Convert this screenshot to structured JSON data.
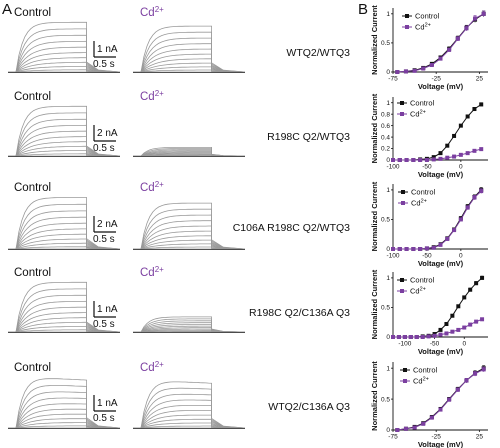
{
  "figure": {
    "panel_a": "A",
    "panel_b": "B"
  },
  "colors": {
    "control": "#111111",
    "cd": "#7b3fa0",
    "trace": "#9a9a9a"
  },
  "labels": {
    "control": "Control",
    "cd_main": "Cd",
    "cd_sup": "2+"
  },
  "rows": [
    {
      "label": "WTQ2/WTQ3",
      "scale_current": "1 nA",
      "scale_time": "0.5 s"
    },
    {
      "label": "R198C Q2/WTQ3",
      "scale_current": "2 nA",
      "scale_time": "0.5 s"
    },
    {
      "label": "C106A R198C Q2/WTQ3",
      "scale_current": "2 nA",
      "scale_time": "0.5 s"
    },
    {
      "label": "R198C Q2/C136A Q3",
      "scale_current": "1 nA",
      "scale_time": "0.5 s"
    },
    {
      "label": "WTQ2/C136A Q3",
      "scale_current": "1 nA",
      "scale_time": "0.5 s"
    }
  ],
  "chart_data": [
    {
      "type": "line",
      "xlabel": "Voltage (mV)",
      "ylabel": "Normalized Current",
      "xlim": [
        -75,
        35
      ],
      "ylim": [
        0,
        1.1
      ],
      "xticks": [
        -75,
        -25,
        25
      ],
      "yticks": [
        0.0,
        0.5,
        1.0
      ],
      "x": [
        -70,
        -60,
        -50,
        -40,
        -30,
        -20,
        -10,
        0,
        10,
        20,
        30
      ],
      "series": [
        {
          "name": "Control",
          "values": [
            0.0,
            0.01,
            0.03,
            0.07,
            0.14,
            0.25,
            0.4,
            0.58,
            0.76,
            0.9,
            1.0
          ]
        },
        {
          "name": "Cd2+",
          "values": [
            0.0,
            0.01,
            0.02,
            0.06,
            0.12,
            0.23,
            0.38,
            0.57,
            0.75,
            0.92,
            1.0
          ]
        }
      ],
      "legend": "top-left"
    },
    {
      "type": "line",
      "xlabel": "Voltage (mV)",
      "ylabel": "Normalized Current",
      "xlim": [
        -100,
        40
      ],
      "ylim": [
        0,
        1.1
      ],
      "xticks": [
        -100,
        -50,
        0
      ],
      "yticks": [
        0.0,
        0.2,
        0.4,
        0.6,
        0.8,
        1.0
      ],
      "x": [
        -100,
        -90,
        -80,
        -70,
        -60,
        -50,
        -40,
        -30,
        -20,
        -10,
        0,
        10,
        20,
        30
      ],
      "series": [
        {
          "name": "Control",
          "values": [
            0.0,
            0.0,
            0.0,
            0.0,
            0.01,
            0.02,
            0.05,
            0.12,
            0.25,
            0.42,
            0.6,
            0.76,
            0.89,
            0.97
          ]
        },
        {
          "name": "Cd2+",
          "values": [
            0.0,
            0.0,
            0.0,
            0.0,
            0.0,
            0.0,
            0.01,
            0.02,
            0.04,
            0.06,
            0.09,
            0.12,
            0.16,
            0.19
          ]
        }
      ],
      "legend": "top-right"
    },
    {
      "type": "line",
      "xlabel": "Voltage (mV)",
      "ylabel": "Normalized Current",
      "xlim": [
        -100,
        40
      ],
      "ylim": [
        0,
        1.1
      ],
      "xticks": [
        -100,
        -50,
        0
      ],
      "yticks": [
        0.0,
        0.5,
        1.0
      ],
      "x": [
        -100,
        -90,
        -80,
        -70,
        -60,
        -50,
        -40,
        -30,
        -20,
        -10,
        0,
        10,
        20,
        30
      ],
      "series": [
        {
          "name": "Control",
          "values": [
            0.0,
            0.0,
            0.0,
            0.0,
            0.0,
            0.01,
            0.03,
            0.08,
            0.18,
            0.33,
            0.52,
            0.72,
            0.88,
            1.0
          ]
        },
        {
          "name": "Cd2+",
          "values": [
            0.0,
            0.0,
            0.0,
            0.0,
            0.0,
            0.01,
            0.02,
            0.07,
            0.17,
            0.32,
            0.5,
            0.7,
            0.87,
            0.98
          ]
        }
      ],
      "legend": "top-left"
    },
    {
      "type": "line",
      "xlabel": "Voltage (mV)",
      "ylabel": "Normalized Current",
      "xlim": [
        -120,
        40
      ],
      "ylim": [
        0,
        1.1
      ],
      "xticks": [
        -100,
        -50,
        0
      ],
      "yticks": [
        0.0,
        0.5,
        1.0
      ],
      "x": [
        -120,
        -110,
        -100,
        -90,
        -80,
        -70,
        -60,
        -50,
        -40,
        -30,
        -20,
        -10,
        0,
        10,
        20,
        30
      ],
      "series": [
        {
          "name": "Control",
          "values": [
            0.0,
            0.0,
            0.0,
            0.0,
            0.0,
            0.01,
            0.02,
            0.05,
            0.12,
            0.22,
            0.36,
            0.52,
            0.67,
            0.8,
            0.91,
            1.0
          ]
        },
        {
          "name": "Cd2+",
          "values": [
            0.0,
            0.0,
            0.0,
            0.0,
            0.0,
            0.0,
            0.01,
            0.02,
            0.04,
            0.06,
            0.09,
            0.12,
            0.16,
            0.21,
            0.26,
            0.3
          ]
        }
      ],
      "legend": "top-left"
    },
    {
      "type": "line",
      "xlabel": "Voltage (mV)",
      "ylabel": "Normalized Current",
      "xlim": [
        -75,
        35
      ],
      "ylim": [
        0,
        1.1
      ],
      "xticks": [
        -75,
        -25,
        25
      ],
      "yticks": [
        0.0,
        0.5,
        1.0
      ],
      "x": [
        -70,
        -60,
        -50,
        -40,
        -30,
        -20,
        -10,
        0,
        10,
        20,
        30
      ],
      "series": [
        {
          "name": "Control",
          "values": [
            0.0,
            0.02,
            0.05,
            0.11,
            0.21,
            0.34,
            0.5,
            0.66,
            0.8,
            0.92,
            1.0
          ]
        },
        {
          "name": "Cd2+",
          "values": [
            0.0,
            0.02,
            0.04,
            0.1,
            0.2,
            0.33,
            0.49,
            0.65,
            0.8,
            0.91,
            0.98
          ]
        }
      ],
      "legend": "top-left"
    }
  ]
}
